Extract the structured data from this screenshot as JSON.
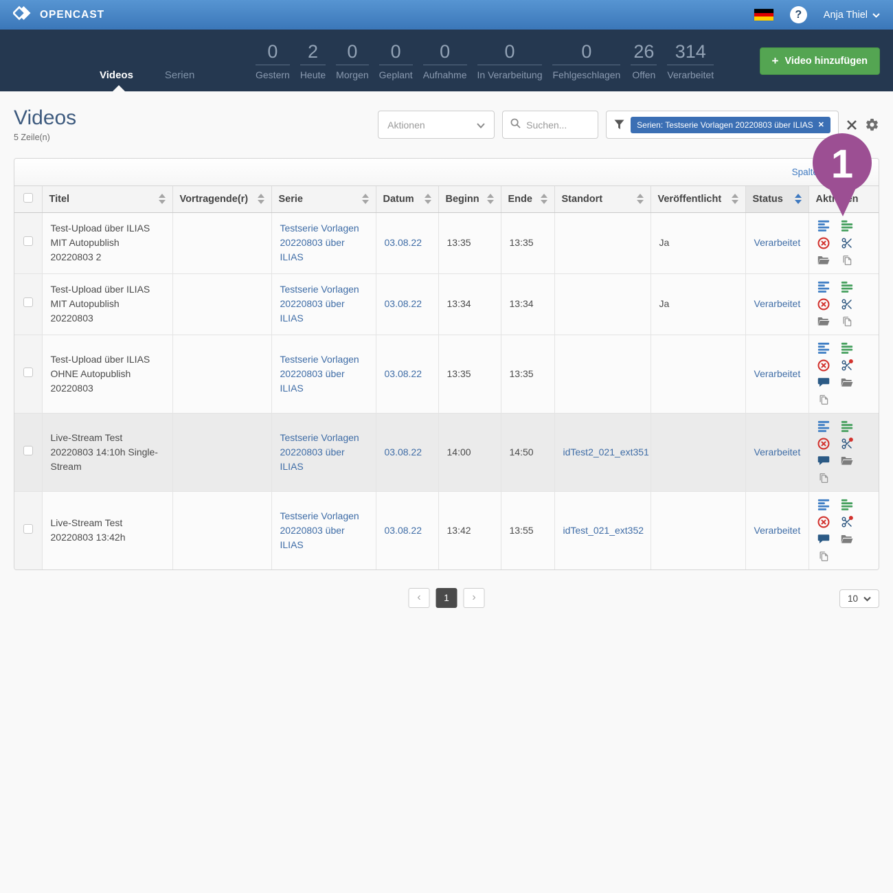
{
  "topbar": {
    "brand": "OPENCAST",
    "language_flag": "german",
    "help_label": "?",
    "user": "Anja Thiel"
  },
  "nav": {
    "tabs": [
      {
        "label": "Videos",
        "active": true
      },
      {
        "label": "Serien",
        "active": false
      }
    ],
    "stats": [
      {
        "value": "0",
        "label": "Gestern"
      },
      {
        "value": "2",
        "label": "Heute"
      },
      {
        "value": "0",
        "label": "Morgen"
      },
      {
        "value": "0",
        "label": "Geplant"
      },
      {
        "value": "0",
        "label": "Aufnahme"
      },
      {
        "value": "0",
        "label": "In Verarbeitung"
      },
      {
        "value": "0",
        "label": "Fehlgeschlagen"
      },
      {
        "value": "26",
        "label": "Offen"
      },
      {
        "value": "314",
        "label": "Verarbeitet"
      }
    ],
    "add_button": "Video hinzufügen"
  },
  "page": {
    "title": "Videos",
    "row_count": "5 Zeile(n)"
  },
  "toolbar": {
    "actions_label": "Aktionen",
    "search_placeholder": "Suchen...",
    "filter_chip": "Serien: Testserie Vorlagen 20220803 über ILIAS",
    "chip_remove": "✕"
  },
  "table": {
    "edit_link": "Spalten bearbeiten",
    "columns": [
      {
        "label": "",
        "type": "checkbox",
        "sortable": false
      },
      {
        "label": "Titel",
        "sortable": true
      },
      {
        "label": "Vortragende(r)",
        "sortable": true
      },
      {
        "label": "Serie",
        "sortable": true
      },
      {
        "label": "Datum",
        "sortable": true
      },
      {
        "label": "Beginn",
        "sortable": true
      },
      {
        "label": "Ende",
        "sortable": true
      },
      {
        "label": "Standort",
        "sortable": true
      },
      {
        "label": "Veröffentlicht",
        "sortable": true
      },
      {
        "label": "Status",
        "sortable": true,
        "sorted": true
      },
      {
        "label": "Aktionen",
        "sortable": false
      }
    ],
    "rows": [
      {
        "title": "Test-Upload über ILIAS MIT Autopublish 20220803 2",
        "presenter": "",
        "series": "Testserie Vorlagen 20220803 über ILIAS",
        "date": "03.08.22",
        "start": "13:35",
        "end": "13:35",
        "location": "",
        "published": "Ja",
        "status": "Verarbeitet",
        "highlighted": false,
        "icons": [
          "event-details",
          "series-details",
          "delete",
          "cut",
          "assets",
          "duplicate"
        ]
      },
      {
        "title": "Test-Upload über ILIAS MIT Autopublish 20220803",
        "presenter": "",
        "series": "Testserie Vorlagen 20220803 über ILIAS",
        "date": "03.08.22",
        "start": "13:34",
        "end": "13:34",
        "location": "",
        "published": "Ja",
        "status": "Verarbeitet",
        "highlighted": false,
        "icons": [
          "event-details",
          "series-details",
          "delete",
          "cut",
          "assets",
          "duplicate"
        ]
      },
      {
        "title": "Test-Upload über ILIAS OHNE Autopublish 20220803",
        "presenter": "",
        "series": "Testserie Vorlagen 20220803 über ILIAS",
        "date": "03.08.22",
        "start": "13:35",
        "end": "13:35",
        "location": "",
        "published": "",
        "status": "Verarbeitet",
        "highlighted": false,
        "icons": [
          "event-details",
          "series-details",
          "delete",
          "cut-alert",
          "comments",
          "assets",
          "duplicate"
        ]
      },
      {
        "title": "Live-Stream Test 20220803 14:10h Single-Stream",
        "presenter": "",
        "series": "Testserie Vorlagen 20220803 über ILIAS",
        "date": "03.08.22",
        "start": "14:00",
        "end": "14:50",
        "location": "idTest2_021_ext351",
        "published": "",
        "status": "Verarbeitet",
        "highlighted": true,
        "icons": [
          "event-details",
          "series-details",
          "delete",
          "cut-alert",
          "comments",
          "assets",
          "duplicate"
        ]
      },
      {
        "title": "Live-Stream Test 20220803 13:42h",
        "presenter": "",
        "series": "Testserie Vorlagen 20220803 über ILIAS",
        "date": "03.08.22",
        "start": "13:42",
        "end": "13:55",
        "location": "idTest_021_ext352",
        "published": "",
        "status": "Verarbeitet",
        "highlighted": false,
        "icons": [
          "event-details",
          "series-details",
          "delete",
          "cut-alert",
          "comments",
          "assets",
          "duplicate"
        ]
      }
    ]
  },
  "pagination": {
    "prev": "‹",
    "current_page": "1",
    "next": "›",
    "page_size": "10"
  },
  "annotation": {
    "label": "1"
  },
  "colors": {
    "accent_blue": "#3e6ca6",
    "chip_blue": "#3b6fb4",
    "button_green": "#54a552",
    "pin_purple": "#9c4f93",
    "status_red": "#d2322d",
    "icon_green": "#46a05e",
    "icon_blue": "#3f7ec4",
    "navbar": "#253850"
  }
}
